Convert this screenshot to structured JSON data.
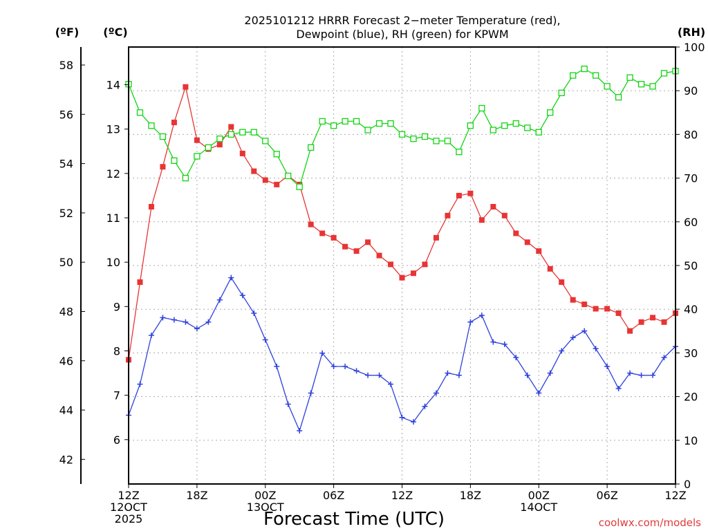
{
  "title_lines": [
    "2025101212 HRRR Forecast 2−meter Temperature (red),",
    "Dewpoint (blue), RH (green) for KPWM"
  ],
  "credit": "coolwx.com/models",
  "colors": {
    "temperature": "#e83434",
    "dewpoint": "#2d40dc",
    "rh": "#11d411",
    "grid": "#aaaaaa"
  },
  "chart_data": {
    "type": "line",
    "title": "2025101212 HRRR Forecast 2−meter Temperature (red), Dewpoint (blue), RH (green) for KPWM",
    "xlabel": "Forecast Time (UTC)",
    "x_hours": [
      0,
      1,
      2,
      3,
      4,
      5,
      6,
      7,
      8,
      9,
      10,
      11,
      12,
      13,
      14,
      15,
      16,
      17,
      18,
      19,
      20,
      21,
      22,
      23,
      24,
      25,
      26,
      27,
      28,
      29,
      30,
      31,
      32,
      33,
      34,
      35,
      36,
      37,
      38,
      39,
      40,
      41,
      42,
      43,
      44,
      45,
      46,
      47,
      48
    ],
    "x_range": [
      0,
      48
    ],
    "x_ticks": [
      {
        "hour": 0,
        "lines": [
          "12Z",
          "12OCT",
          "2025"
        ]
      },
      {
        "hour": 6,
        "lines": [
          "18Z"
        ]
      },
      {
        "hour": 12,
        "lines": [
          "00Z",
          "13OCT"
        ]
      },
      {
        "hour": 18,
        "lines": [
          "06Z"
        ]
      },
      {
        "hour": 24,
        "lines": [
          "12Z"
        ]
      },
      {
        "hour": 30,
        "lines": [
          "18Z"
        ]
      },
      {
        "hour": 36,
        "lines": [
          "00Z",
          "14OCT"
        ]
      },
      {
        "hour": 42,
        "lines": [
          "06Z"
        ]
      },
      {
        "hour": 48,
        "lines": [
          "12Z"
        ]
      }
    ],
    "axes": {
      "celsius": {
        "label": "(ºC)",
        "range": [
          5.0,
          14.85
        ],
        "ticks": [
          6,
          7,
          8,
          9,
          10,
          11,
          12,
          13,
          14
        ]
      },
      "fahrenheit": {
        "label": "(ºF)",
        "range": [
          41,
          58.73
        ],
        "ticks": [
          42,
          44,
          46,
          48,
          50,
          52,
          54,
          56,
          58
        ]
      },
      "rh": {
        "label": "(RH)",
        "range": [
          0,
          100
        ],
        "ticks": [
          0,
          10,
          20,
          30,
          40,
          50,
          60,
          70,
          80,
          90,
          100
        ]
      }
    },
    "series": [
      {
        "name": "Temperature",
        "color": "#e83434",
        "marker": "filled-square",
        "axis": "celsius",
        "values": [
          7.8,
          9.55,
          11.25,
          12.15,
          13.15,
          13.95,
          12.75,
          12.55,
          12.65,
          13.05,
          12.45,
          12.05,
          11.85,
          11.75,
          11.95,
          11.75,
          10.85,
          10.65,
          10.55,
          10.35,
          10.25,
          10.45,
          10.15,
          9.95,
          9.65,
          9.75,
          9.95,
          10.55,
          11.05,
          11.5,
          11.55,
          10.95,
          11.25,
          11.05,
          10.65,
          10.45,
          10.25,
          9.85,
          9.55,
          9.15,
          9.05,
          8.95,
          8.95,
          8.85,
          8.45,
          8.65,
          8.75,
          8.65,
          8.85
        ]
      },
      {
        "name": "Dewpoint",
        "color": "#2d40dc",
        "marker": "plus",
        "axis": "celsius",
        "values": [
          6.55,
          7.25,
          8.35,
          8.75,
          8.7,
          8.65,
          8.5,
          8.65,
          9.15,
          9.65,
          9.25,
          8.85,
          8.25,
          7.65,
          6.8,
          6.2,
          7.05,
          7.95,
          7.65,
          7.65,
          7.55,
          7.45,
          7.45,
          7.25,
          6.5,
          6.4,
          6.75,
          7.05,
          7.5,
          7.45,
          8.65,
          8.8,
          8.2,
          8.15,
          7.85,
          7.45,
          7.05,
          7.5,
          8.0,
          8.3,
          8.45,
          8.05,
          7.65,
          7.15,
          7.5,
          7.45,
          7.45,
          7.85,
          8.1
        ]
      },
      {
        "name": "RH",
        "color": "#11d411",
        "marker": "open-square",
        "axis": "rh",
        "values": [
          91.5,
          85,
          82,
          79.5,
          74,
          70,
          75,
          77,
          79,
          80,
          80.5,
          80.5,
          78.5,
          75.5,
          70.5,
          68,
          77,
          83,
          82,
          83,
          83,
          81,
          82.5,
          82.5,
          80,
          79,
          79.5,
          78.5,
          78.5,
          76,
          82,
          86,
          81,
          82,
          82.5,
          81.5,
          80.5,
          85,
          89.5,
          93.5,
          95,
          93.5,
          91,
          88.5,
          93,
          91.5,
          91,
          94,
          94.5
        ]
      }
    ]
  }
}
